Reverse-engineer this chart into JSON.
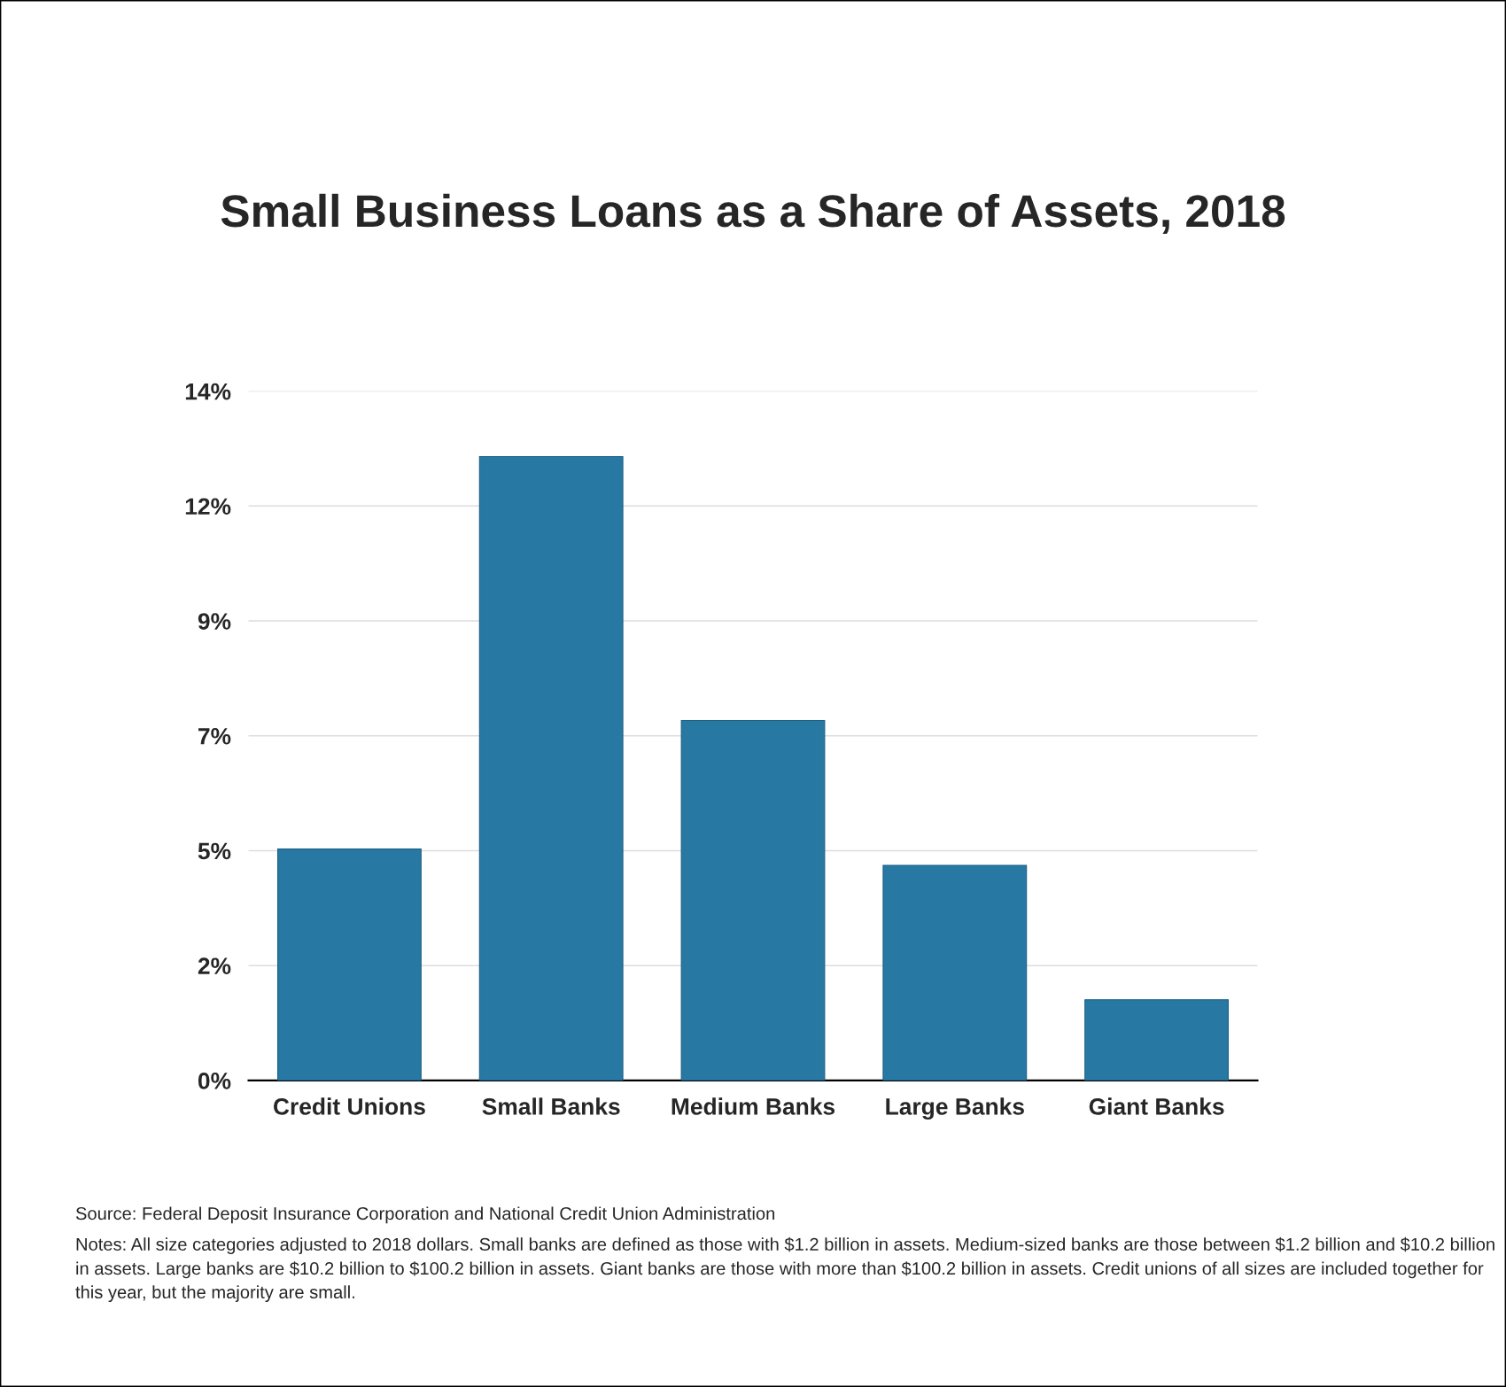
{
  "chart_data": {
    "type": "bar",
    "title": "Small Business Loans as a Share of Assets, 2018",
    "categories": [
      "Credit Unions",
      "Small Banks",
      "Medium Banks",
      "Large Banks",
      "Giant Banks"
    ],
    "values": [
      4.7,
      12.67,
      7.31,
      4.37,
      1.64
    ],
    "color": "#2878a4",
    "ylim": [
      0,
      14
    ],
    "yticks": [
      {
        "value": 0,
        "label": "0%"
      },
      {
        "value": 2.333,
        "label": "2%"
      },
      {
        "value": 4.667,
        "label": "5%"
      },
      {
        "value": 7,
        "label": "7%"
      },
      {
        "value": 9.333,
        "label": "9%"
      },
      {
        "value": 11.667,
        "label": "12%"
      },
      {
        "value": 14,
        "label": "14%"
      }
    ],
    "grid": "y",
    "annotations": [
      "Source: Federal Deposit Insurance Corporation and National Credit Union Administration",
      "Notes: All size categories adjusted to 2018 dollars. Small banks are defined as those with $1.2 billion in assets. Medium-sized banks are those between $1.2 billion and $10.2 billion in assets. Large banks are $10.2 billion to $100.2 billion in assets. Giant banks are those with more than $100.2 billion in assets. Credit unions of all sizes are included together for this year, but the majority are small."
    ]
  }
}
